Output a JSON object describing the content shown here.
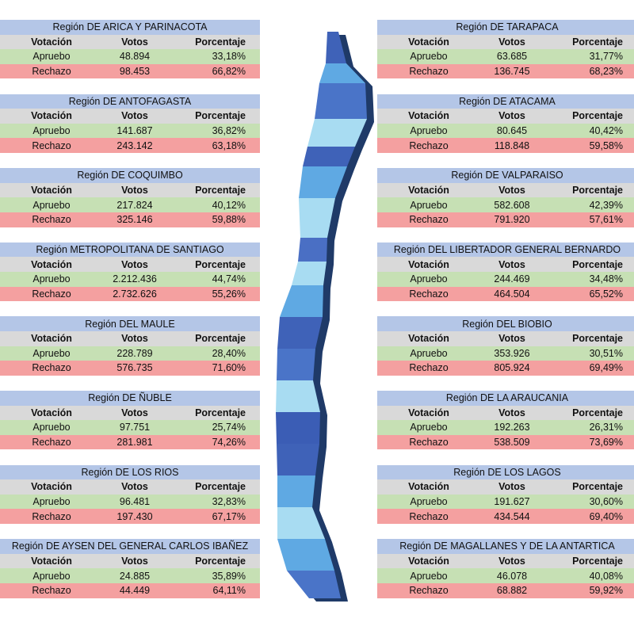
{
  "columns": [
    "Votación",
    "Votos",
    "Porcentaje"
  ],
  "regions": [
    {
      "title": "Región DE ARICA Y PARINACOTA",
      "rows": [
        [
          "Apruebo",
          "48.894",
          "33,18%"
        ],
        [
          "Rechazo",
          "98.453",
          "66,82%"
        ]
      ]
    },
    {
      "title": "Región DE ANTOFAGASTA",
      "rows": [
        [
          "Apruebo",
          "141.687",
          "36,82%"
        ],
        [
          "Rechazo",
          "243.142",
          "63,18%"
        ]
      ]
    },
    {
      "title": "Región DE COQUIMBO",
      "rows": [
        [
          "Apruebo",
          "217.824",
          "40,12%"
        ],
        [
          "Rechazo",
          "325.146",
          "59,88%"
        ]
      ]
    },
    {
      "title": "Región METROPOLITANA DE SANTIAGO",
      "rows": [
        [
          "Apruebo",
          "2.212.436",
          "44,74%"
        ],
        [
          "Rechazo",
          "2.732.626",
          "55,26%"
        ]
      ]
    },
    {
      "title": "Región DEL MAULE",
      "rows": [
        [
          "Apruebo",
          "228.789",
          "28,40%"
        ],
        [
          "Rechazo",
          "576.735",
          "71,60%"
        ]
      ]
    },
    {
      "title": "Región DE ÑUBLE",
      "rows": [
        [
          "Apruebo",
          "97.751",
          "25,74%"
        ],
        [
          "Rechazo",
          "281.981",
          "74,26%"
        ]
      ]
    },
    {
      "title": "Región DE LOS RIOS",
      "rows": [
        [
          "Apruebo",
          "96.481",
          "32,83%"
        ],
        [
          "Rechazo",
          "197.430",
          "67,17%"
        ]
      ]
    },
    {
      "title": "Región DE AYSEN DEL GENERAL CARLOS IBAÑEZ",
      "rows": [
        [
          "Apruebo",
          "24.885",
          "35,89%"
        ],
        [
          "Rechazo",
          "44.449",
          "64,11%"
        ]
      ]
    },
    {
      "title": "Región DE TARAPACA",
      "rows": [
        [
          "Apruebo",
          "63.685",
          "31,77%"
        ],
        [
          "Rechazo",
          "136.745",
          "68,23%"
        ]
      ]
    },
    {
      "title": "Región DE ATACAMA",
      "rows": [
        [
          "Apruebo",
          "80.645",
          "40,42%"
        ],
        [
          "Rechazo",
          "118.848",
          "59,58%"
        ]
      ]
    },
    {
      "title": "Región DE VALPARAISO",
      "rows": [
        [
          "Apruebo",
          "582.608",
          "42,39%"
        ],
        [
          "Rechazo",
          "791.920",
          "57,61%"
        ]
      ]
    },
    {
      "title": "Región DEL LIBERTADOR GENERAL BERNARDO",
      "rows": [
        [
          "Apruebo",
          "244.469",
          "34,48%"
        ],
        [
          "Rechazo",
          "464.504",
          "65,52%"
        ]
      ]
    },
    {
      "title": "Región DEL BIOBIO",
      "rows": [
        [
          "Apruebo",
          "353.926",
          "30,51%"
        ],
        [
          "Rechazo",
          "805.924",
          "69,49%"
        ]
      ]
    },
    {
      "title": "Región DE LA ARAUCANIA",
      "rows": [
        [
          "Apruebo",
          "192.263",
          "26,31%"
        ],
        [
          "Rechazo",
          "538.509",
          "73,69%"
        ]
      ]
    },
    {
      "title": "Región DE LOS LAGOS",
      "rows": [
        [
          "Apruebo",
          "191.627",
          "30,60%"
        ],
        [
          "Rechazo",
          "434.544",
          "69,40%"
        ]
      ]
    },
    {
      "title": "Región DE MAGALLANES Y DE LA ANTARTICA",
      "rows": [
        [
          "Apruebo",
          "46.078",
          "40,08%"
        ],
        [
          "Rechazo",
          "68.882",
          "59,92%"
        ]
      ]
    }
  ]
}
